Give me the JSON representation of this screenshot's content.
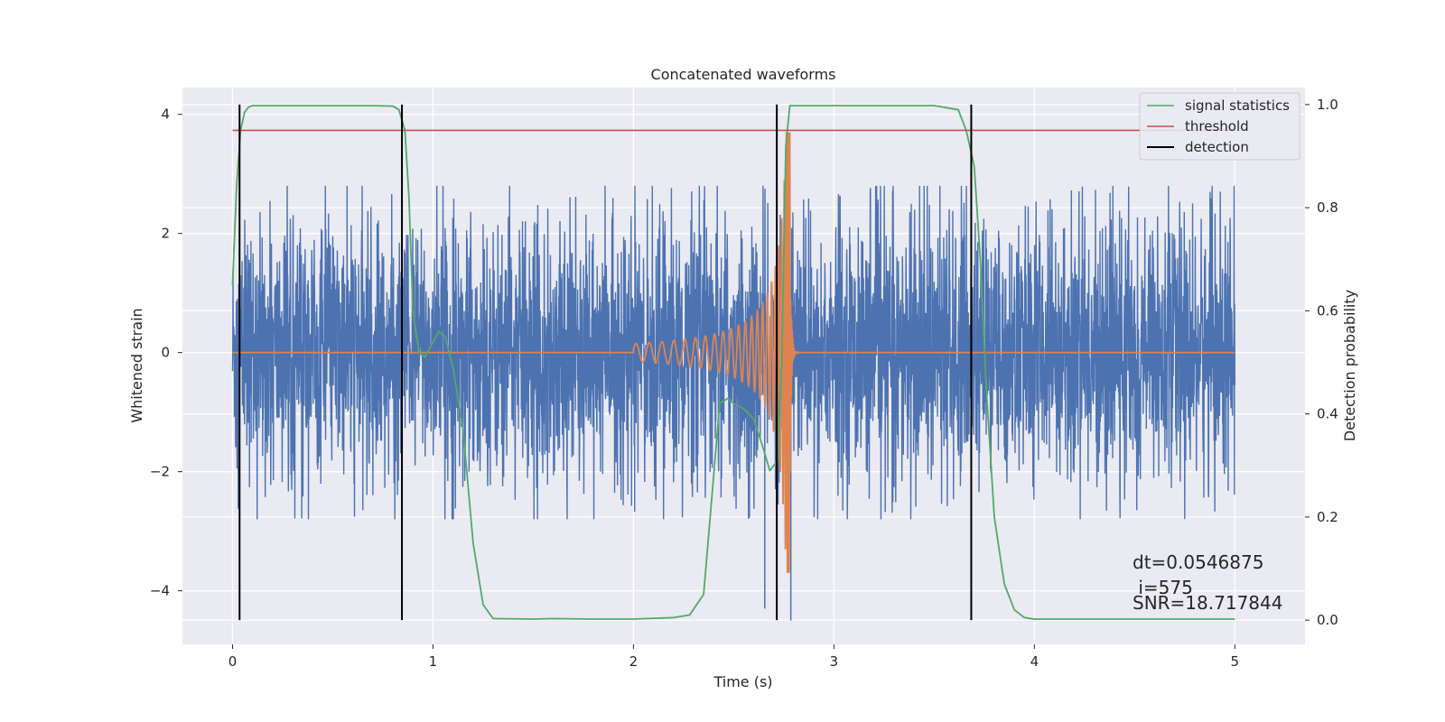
{
  "chart_data": {
    "type": "line",
    "title": "Concatenated waveforms",
    "xlabel": "Time (s)",
    "ylabel": "Whitened strain",
    "y2label": "Detection probability",
    "xlim": [
      -0.25,
      5.35
    ],
    "ylim": [
      -4.9,
      4.45
    ],
    "y2lim": [
      -0.047,
      1.033
    ],
    "xticks": [
      0,
      1,
      2,
      3,
      4,
      5
    ],
    "yticks": [
      -4,
      -2,
      0,
      2,
      4
    ],
    "yticklabels": [
      "−4",
      "−2",
      "0",
      "2",
      "4"
    ],
    "y2ticks": [
      0.0,
      0.2,
      0.4,
      0.6,
      0.8,
      1.0
    ],
    "y2ticklabels": [
      "0.0",
      "0.2",
      "0.4",
      "0.6",
      "0.8",
      "1.0"
    ],
    "grid": true,
    "legend_position": "top-right",
    "series": [
      {
        "key": "strain",
        "kind": "noise",
        "axis": "left",
        "color": "#4c72b0",
        "x_range": [
          0,
          5
        ],
        "amplitude_core": 1.0,
        "amplitude_peak": 2.8
      },
      {
        "key": "injected_waveform",
        "kind": "chirp",
        "axis": "left",
        "color": "#dd8452",
        "x_range": [
          0,
          5
        ],
        "chirp_start": 2.0,
        "merger_time": 2.78,
        "start_amplitude": 0.15,
        "peak_amplitude": 3.7
      },
      {
        "key": "signal_statistics",
        "name": "signal statistics",
        "axis": "right",
        "color": "#55a868",
        "x": [
          0.0,
          0.02,
          0.04,
          0.06,
          0.08,
          0.1,
          0.2,
          0.5,
          0.7,
          0.8,
          0.83,
          0.86,
          0.88,
          0.9,
          0.93,
          0.96,
          1.0,
          1.03,
          1.06,
          1.1,
          1.15,
          1.2,
          1.25,
          1.3,
          1.5,
          1.6,
          1.8,
          2.0,
          2.2,
          2.28,
          2.35,
          2.4,
          2.43,
          2.47,
          2.5,
          2.55,
          2.6,
          2.65,
          2.68,
          2.72,
          2.74,
          2.76,
          2.78,
          2.8,
          3.0,
          3.5,
          3.62,
          3.66,
          3.7,
          3.73,
          3.76,
          3.8,
          3.85,
          3.9,
          3.95,
          4.0,
          5.0
        ],
        "y": [
          0.65,
          0.84,
          0.95,
          0.985,
          0.995,
          0.998,
          0.998,
          0.998,
          0.998,
          0.997,
          0.99,
          0.95,
          0.82,
          0.6,
          0.52,
          0.51,
          0.54,
          0.56,
          0.55,
          0.49,
          0.37,
          0.15,
          0.03,
          0.003,
          0.002,
          0.003,
          0.002,
          0.002,
          0.005,
          0.01,
          0.05,
          0.28,
          0.42,
          0.43,
          0.42,
          0.41,
          0.39,
          0.33,
          0.29,
          0.31,
          0.5,
          0.92,
          0.998,
          0.998,
          0.998,
          0.998,
          0.99,
          0.95,
          0.88,
          0.7,
          0.45,
          0.2,
          0.07,
          0.02,
          0.005,
          0.002,
          0.002
        ]
      },
      {
        "key": "threshold",
        "name": "threshold",
        "axis": "right",
        "color": "#c44e52",
        "x": [
          0.0,
          5.0
        ],
        "y": [
          0.95,
          0.95
        ]
      },
      {
        "key": "detection",
        "name": "detection",
        "axis": "right",
        "color": "#000000",
        "kind": "vlines",
        "x": [
          0.035,
          0.845,
          2.715,
          3.685
        ],
        "y_range": [
          0.0,
          1.0
        ]
      }
    ],
    "annotations": [
      "dt=0.0546875",
      " i=575",
      "SNR=18.717844"
    ]
  }
}
